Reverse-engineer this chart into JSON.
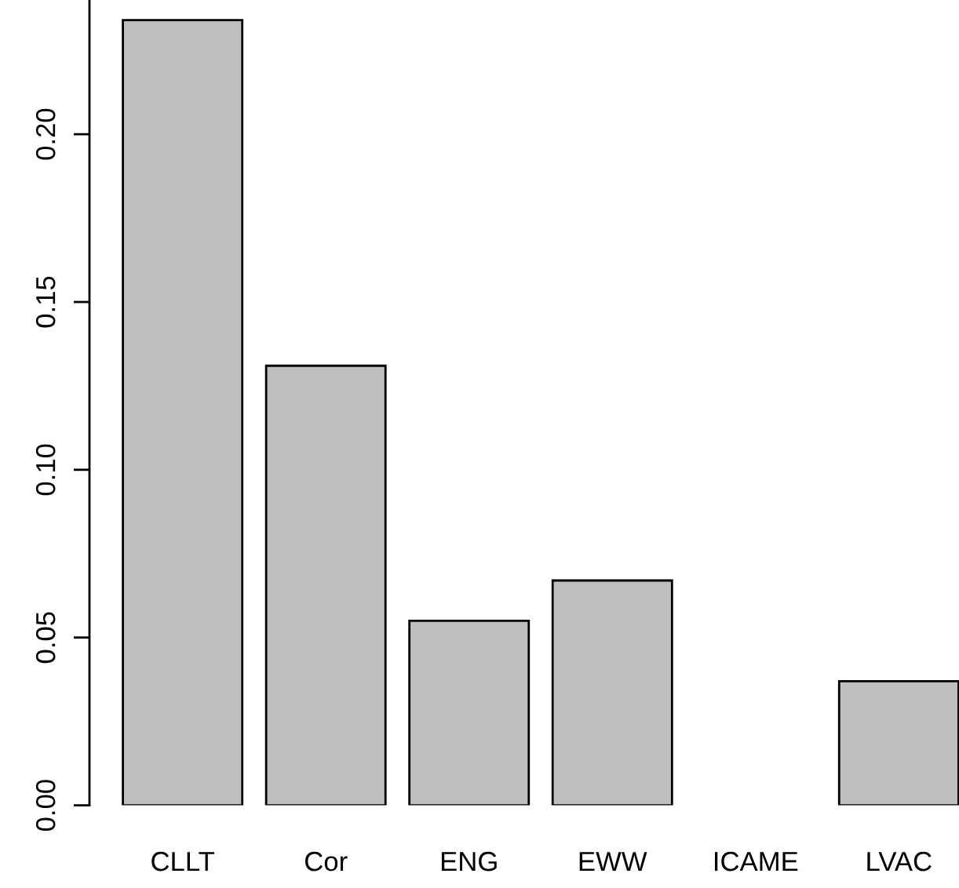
{
  "chart_data": {
    "type": "bar",
    "categories": [
      "CLLT",
      "Cor",
      "ENG",
      "EWW",
      "ICAME",
      "LVAC"
    ],
    "values": [
      0.234,
      0.131,
      0.055,
      0.067,
      null,
      0.037
    ],
    "color": "#bebebe",
    "ylim": [
      0,
      0.24
    ],
    "yticks": [
      {
        "value": 0,
        "label": "0.00"
      },
      {
        "value": 0.05,
        "label": "0.05"
      },
      {
        "value": 0.1,
        "label": "0.10"
      },
      {
        "value": 0.15,
        "label": "0.15"
      },
      {
        "value": 0.2,
        "label": "0.20"
      }
    ]
  }
}
